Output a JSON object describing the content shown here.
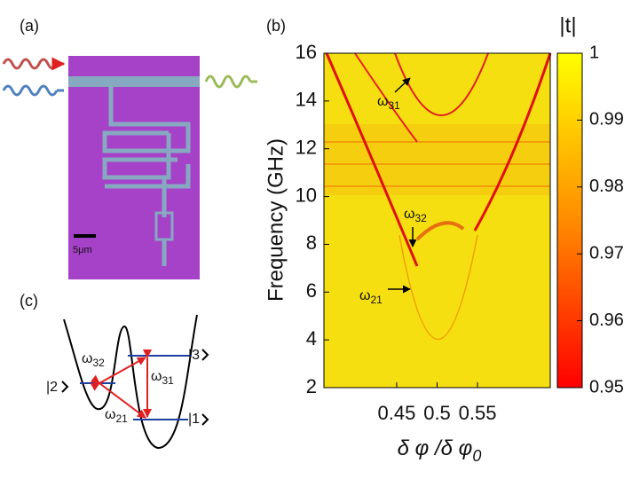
{
  "panels": {
    "a": "(a)",
    "b": "(b)",
    "c": "(c)"
  },
  "scale_bar": "5μm",
  "chart_data": {
    "type": "heatmap",
    "ylabel": "Frequency (GHz)",
    "xlabel": {
      "text": "δ φ /δ φ",
      "sub": "0"
    },
    "xlim": [
      0.36,
      0.64
    ],
    "xticks": [
      0.45,
      0.5,
      0.55
    ],
    "ylim": [
      2,
      16
    ],
    "yticks": [
      2,
      4,
      6,
      8,
      10,
      12,
      14,
      16
    ],
    "colorbar": {
      "title": "|t|",
      "lim": [
        0.95,
        1
      ],
      "ticks": [
        0.95,
        0.96,
        0.97,
        0.98,
        0.99,
        1
      ],
      "colors": [
        "#ff0000",
        "#ff8c00",
        "#ffff00"
      ]
    },
    "annotations": [
      {
        "symbol": "ω",
        "sub": "31"
      },
      {
        "symbol": "ω",
        "sub": "32"
      },
      {
        "symbol": "ω",
        "sub": "21"
      }
    ]
  },
  "diagram": {
    "levels": [
      "|1",
      "|2",
      "|3"
    ],
    "transitions": [
      {
        "symbol": "ω",
        "sub": "32"
      },
      {
        "symbol": "ω",
        "sub": "31"
      },
      {
        "symbol": "ω",
        "sub": "21"
      }
    ]
  }
}
